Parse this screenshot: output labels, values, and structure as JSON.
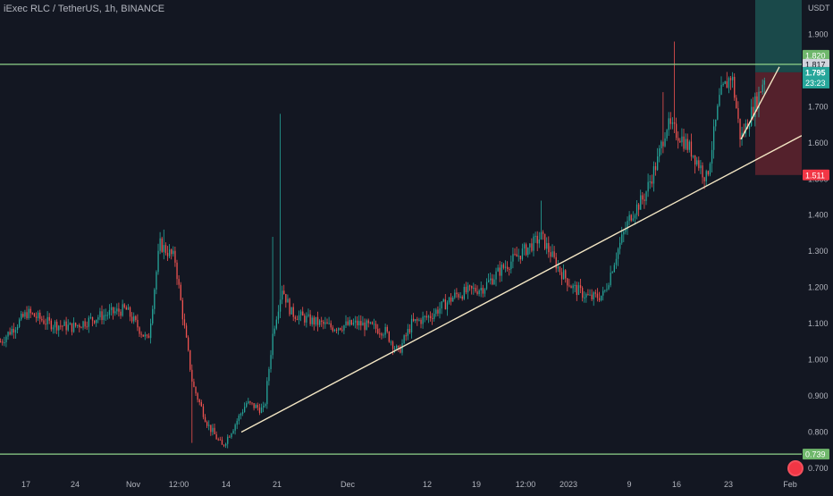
{
  "header": {
    "symbol_line": "iExec RLC / TetherUS, 1h, BINANCE"
  },
  "axis": {
    "unit": "USDT"
  },
  "badges": {
    "target": "1.820",
    "resistance": "1.817",
    "last_price": "1.795",
    "countdown": "23:23",
    "stop": "1.511",
    "support": "0.739"
  },
  "colors": {
    "background": "#131722",
    "up": "#26a69a",
    "down": "#ef5350",
    "level_line": "#8fd38a",
    "trendline": "#f3e6c4",
    "target_zone": "#1e5b58",
    "stop_zone": "#6b2530",
    "last_price_badge": "#26a69a",
    "stop_badge": "#f23645"
  },
  "chart_data": {
    "type": "candlestick",
    "title": "iExec RLC / TetherUS, 1h, BINANCE",
    "y_axis": {
      "label": "USDT",
      "range": [
        0.68,
        1.995
      ],
      "ticks": [
        "1.900",
        "1.800",
        "1.700",
        "1.600",
        "1.500",
        "1.400",
        "1.300",
        "1.200",
        "1.100",
        "1.000",
        "0.900",
        "0.800",
        "0.700"
      ]
    },
    "x_axis": {
      "ticks": [
        "17",
        "24",
        "Nov",
        "12:00",
        "14",
        "21",
        "Dec",
        "12",
        "19",
        "12:00",
        "2023",
        "9",
        "16",
        "23",
        "Feb"
      ]
    },
    "price_path": [
      [
        0,
        1.05
      ],
      [
        30,
        1.13
      ],
      [
        55,
        1.1
      ],
      [
        80,
        1.09
      ],
      [
        110,
        1.12
      ],
      [
        140,
        1.14
      ],
      [
        165,
        1.05
      ],
      [
        178,
        1.32
      ],
      [
        195,
        1.28
      ],
      [
        205,
        1.1
      ],
      [
        215,
        0.93
      ],
      [
        232,
        0.82
      ],
      [
        248,
        0.76
      ],
      [
        262,
        0.82
      ],
      [
        275,
        0.88
      ],
      [
        295,
        0.86
      ],
      [
        305,
        1.08
      ],
      [
        315,
        1.2
      ],
      [
        325,
        1.13
      ],
      [
        345,
        1.11
      ],
      [
        370,
        1.09
      ],
      [
        400,
        1.1
      ],
      [
        430,
        1.08
      ],
      [
        445,
        1.02
      ],
      [
        460,
        1.1
      ],
      [
        480,
        1.12
      ],
      [
        510,
        1.18
      ],
      [
        540,
        1.2
      ],
      [
        560,
        1.25
      ],
      [
        585,
        1.3
      ],
      [
        605,
        1.34
      ],
      [
        625,
        1.25
      ],
      [
        640,
        1.2
      ],
      [
        660,
        1.17
      ],
      [
        675,
        1.18
      ],
      [
        690,
        1.3
      ],
      [
        705,
        1.4
      ],
      [
        720,
        1.45
      ],
      [
        735,
        1.55
      ],
      [
        745,
        1.65
      ],
      [
        760,
        1.62
      ],
      [
        775,
        1.57
      ],
      [
        790,
        1.5
      ],
      [
        805,
        1.73
      ],
      [
        818,
        1.79
      ],
      [
        828,
        1.61
      ],
      [
        838,
        1.67
      ],
      [
        848,
        1.73
      ],
      [
        856,
        1.795
      ]
    ],
    "levels": [
      {
        "name": "resistance",
        "value": 1.817
      },
      {
        "name": "support",
        "value": 0.739
      }
    ],
    "trendlines": [
      {
        "from": [
          270,
          0.8
        ],
        "to": [
          897,
          1.62
        ]
      },
      {
        "from": [
          829,
          1.61
        ],
        "to": [
          872,
          1.81
        ]
      }
    ],
    "zones": [
      {
        "name": "target",
        "from": 1.795,
        "to": 2.0
      },
      {
        "name": "stop",
        "from": 1.511,
        "to": 1.795
      }
    ]
  }
}
